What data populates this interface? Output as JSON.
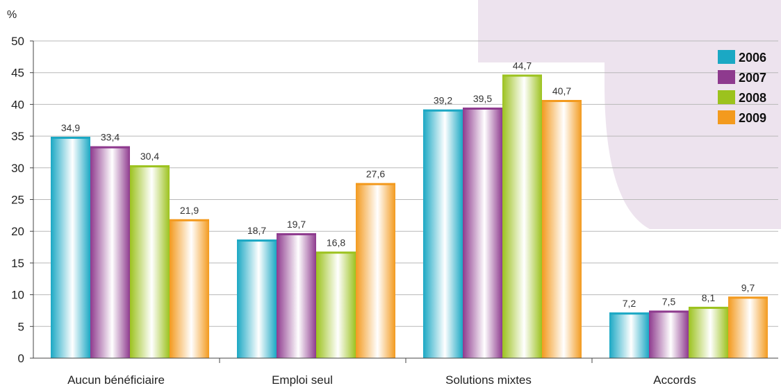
{
  "chart_data": {
    "type": "bar",
    "title": "",
    "xlabel": "",
    "ylabel": "%",
    "ylim": [
      0,
      50
    ],
    "yticks": [
      0,
      5,
      10,
      15,
      20,
      25,
      30,
      35,
      40,
      45,
      50
    ],
    "grid": true,
    "legend_position": "top-right",
    "categories": [
      "Aucun bénéficiaire",
      "Emploi seul",
      "Solutions mixtes",
      "Accords"
    ],
    "series": [
      {
        "name": "2006",
        "color": "#1BA8C4",
        "values": [
          34.9,
          18.7,
          39.2,
          7.2
        ],
        "labels": [
          "34,9",
          "18,7",
          "39,2",
          "7,2"
        ]
      },
      {
        "name": "2007",
        "color": "#8E3A8E",
        "values": [
          33.4,
          19.7,
          39.5,
          7.5
        ],
        "labels": [
          "33,4",
          "19,7",
          "39,5",
          "7,5"
        ]
      },
      {
        "name": "2008",
        "color": "#9CC21E",
        "values": [
          30.4,
          16.8,
          44.7,
          8.1
        ],
        "labels": [
          "30,4",
          "16,8",
          "44,7",
          "8,1"
        ]
      },
      {
        "name": "2009",
        "color": "#F39A1E",
        "values": [
          21.9,
          27.6,
          40.7,
          9.7
        ],
        "labels": [
          "21,9",
          "27,6",
          "40,7",
          "9,7"
        ]
      }
    ],
    "background_accent": "#EDE3EE"
  }
}
